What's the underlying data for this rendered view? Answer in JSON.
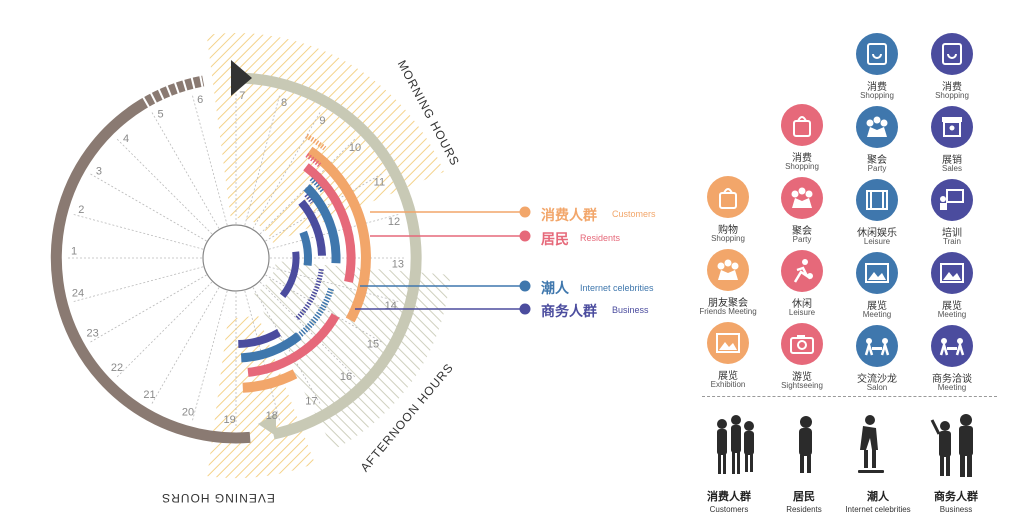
{
  "clock": {
    "hours": [
      "7",
      "8",
      "9",
      "10",
      "11",
      "12",
      "13",
      "14",
      "15",
      "16",
      "17",
      "18",
      "19",
      "20",
      "21",
      "22",
      "23",
      "24",
      "1",
      "2",
      "3",
      "4",
      "5",
      "6"
    ],
    "morning_label": "MORNING HOURS",
    "afternoon_label": "AFTERNOON HOURS",
    "evening_label": "EVENING HOURS"
  },
  "legend": [
    {
      "zh": "消费人群",
      "en": "Customers",
      "color": "#f2a66a"
    },
    {
      "zh": "居民",
      "en": "Residents",
      "color": "#e6697a"
    },
    {
      "zh": "潮人",
      "en": "Internet celebrities",
      "color": "#3f77ad"
    },
    {
      "zh": "商务人群",
      "en": "Business",
      "color": "#4b4c9e"
    }
  ],
  "icon_columns": [
    {
      "color": "#f2a66a",
      "items": [
        {
          "zh": "购物",
          "en": "Shopping",
          "icon": "shopping-bag-icon"
        },
        {
          "zh": "朋友聚会",
          "en": "Friends Meeting",
          "icon": "friends-icon"
        },
        {
          "zh": "展览",
          "en": "Exhibition",
          "icon": "picture-icon"
        }
      ]
    },
    {
      "color": "#e6697a",
      "items": [
        {
          "zh": "消费",
          "en": "Shopping",
          "icon": "shopping-bag-icon"
        },
        {
          "zh": "聚会",
          "en": "Party",
          "icon": "party-icon"
        },
        {
          "zh": "休闲",
          "en": "Leisure",
          "icon": "leisure-icon"
        },
        {
          "zh": "游览",
          "en": "Sightseeing",
          "icon": "camera-icon"
        }
      ]
    },
    {
      "color": "#3f77ad",
      "items": [
        {
          "zh": "消费",
          "en": "Shopping",
          "icon": "shopping-icon"
        },
        {
          "zh": "聚会",
          "en": "Party",
          "icon": "party-icon"
        },
        {
          "zh": "休闲娱乐",
          "en": "Leisure",
          "icon": "film-icon"
        },
        {
          "zh": "展览",
          "en": "Meeting",
          "icon": "picture-icon"
        },
        {
          "zh": "交流沙龙",
          "en": "Salon",
          "icon": "salon-icon"
        }
      ]
    },
    {
      "color": "#4b4c9e",
      "items": [
        {
          "zh": "消费",
          "en": "Shopping",
          "icon": "shopping-icon"
        },
        {
          "zh": "展销",
          "en": "Sales",
          "icon": "booth-icon"
        },
        {
          "zh": "培训",
          "en": "Train",
          "icon": "training-icon"
        },
        {
          "zh": "展览",
          "en": "Meeting",
          "icon": "picture-icon"
        },
        {
          "zh": "商务洽谈",
          "en": "Meeting",
          "icon": "meeting-icon"
        }
      ]
    }
  ],
  "figures": [
    {
      "zh": "消费人群",
      "en": "Customers"
    },
    {
      "zh": "居民",
      "en": "Residents"
    },
    {
      "zh": "潮人",
      "en": "Internet celebrities"
    },
    {
      "zh": "商务人群",
      "en": "Business"
    }
  ]
}
